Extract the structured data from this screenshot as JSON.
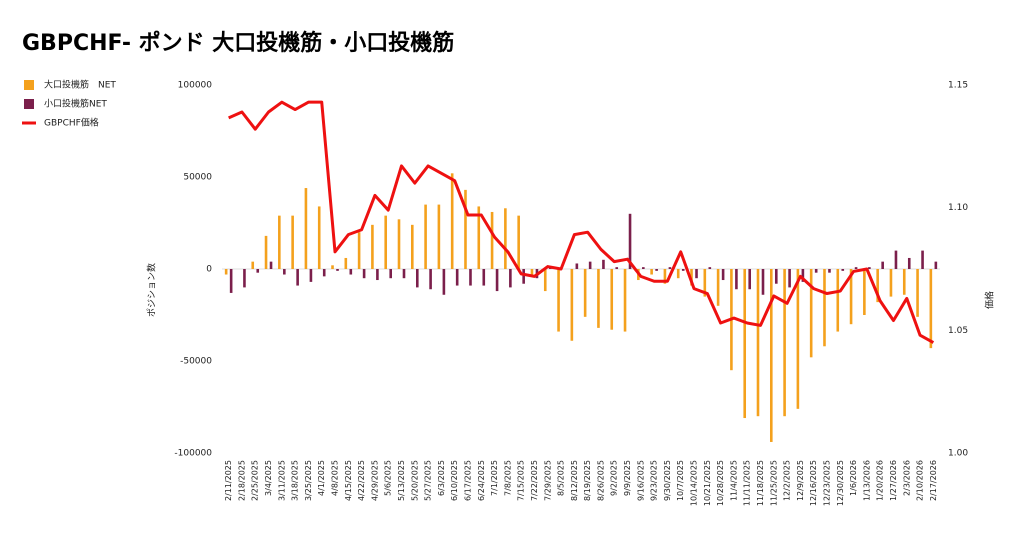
{
  "chart_data": {
    "type": "bar",
    "title": "GBPCHF- ポンド 大口投機筋・小口投機筋",
    "y_label": "ポジション数",
    "y2_label": "価格",
    "categories": [
      "2/11/2025",
      "2/18/2025",
      "2/25/2025",
      "3/4/2025",
      "3/11/2025",
      "3/18/2025",
      "3/25/2025",
      "4/1/2025",
      "4/8/2025",
      "4/15/2025",
      "4/22/2025",
      "4/29/2025",
      "5/6/2025",
      "5/13/2025",
      "5/20/2025",
      "5/27/2025",
      "6/3/2025",
      "6/10/2025",
      "6/17/2025",
      "6/24/2025",
      "7/1/2025",
      "7/8/2025",
      "7/15/2025",
      "7/22/2025",
      "7/29/2025",
      "8/5/2025",
      "8/12/2025",
      "8/19/2025",
      "8/26/2025",
      "9/2/2025",
      "9/9/2025",
      "9/16/2025",
      "9/23/2025",
      "9/30/2025",
      "10/7/2025",
      "10/14/2025",
      "10/21/2025",
      "10/28/2025",
      "11/4/2025",
      "11/11/2025",
      "11/18/2025",
      "11/25/2025",
      "12/2/2025",
      "12/9/2025",
      "12/16/2025",
      "12/23/2025",
      "12/30/2025",
      "1/6/2026",
      "1/13/2026",
      "1/20/2026",
      "1/27/2026",
      "2/3/2026",
      "2/10/2026",
      "2/17/2026"
    ],
    "series": [
      {
        "name": "大口投機筋　NET",
        "color": "#f4a11d",
        "type": "bar",
        "values": [
          -3000,
          0,
          4000,
          18000,
          29000,
          29000,
          44000,
          34000,
          2000,
          6000,
          20000,
          24000,
          29000,
          27000,
          24000,
          35000,
          35000,
          52000,
          43000,
          34000,
          31000,
          33000,
          29000,
          -3000,
          -12000,
          -34000,
          -39000,
          -26000,
          -32000,
          -33000,
          -34000,
          -6000,
          -3000,
          -8000,
          -5000,
          -9000,
          -15000,
          -20000,
          -55000,
          -81000,
          -80000,
          -94000,
          -80000,
          -76000,
          -48000,
          -42000,
          -34000,
          -30000,
          -25000,
          -18000,
          -15000,
          -14000,
          -26000,
          -43000
        ]
      },
      {
        "name": "小口投機筋NET",
        "color": "#7b1f4b",
        "type": "bar",
        "values": [
          -13000,
          -10000,
          -2000,
          4000,
          -3000,
          -9000,
          -7000,
          -4000,
          -1000,
          -3000,
          -5000,
          -6000,
          -5000,
          -5000,
          -10000,
          -11000,
          -14000,
          -9000,
          -9000,
          -9000,
          -12000,
          -10000,
          -8000,
          -5000,
          1000,
          0,
          3000,
          4000,
          5000,
          1000,
          30000,
          1000,
          -1000,
          1000,
          -1000,
          -5000,
          1000,
          -6000,
          -11000,
          -11000,
          -14000,
          -8000,
          -10000,
          -7000,
          -2000,
          -2000,
          -1000,
          1000,
          1000,
          4000,
          10000,
          6000,
          10000,
          4000
        ]
      },
      {
        "name": "GBPCHF価格",
        "color": "#ee1111",
        "type": "line",
        "axis": "y2",
        "values": [
          1.1366,
          1.139,
          1.132,
          1.139,
          1.143,
          1.14,
          1.143,
          1.143,
          1.082,
          1.089,
          1.091,
          1.105,
          1.099,
          1.117,
          1.11,
          1.117,
          1.114,
          1.111,
          1.097,
          1.097,
          1.088,
          1.082,
          1.073,
          1.072,
          1.076,
          1.075,
          1.089,
          1.09,
          1.083,
          1.078,
          1.079,
          1.072,
          1.07,
          1.07,
          1.082,
          1.067,
          1.065,
          1.053,
          1.055,
          1.053,
          1.052,
          1.064,
          1.061,
          1.072,
          1.067,
          1.065,
          1.066,
          1.074,
          1.075,
          1.062,
          1.054,
          1.063,
          1.048,
          1.045
        ]
      }
    ],
    "ylim": [
      -100000,
      100000
    ],
    "yticks": [
      -100000,
      -50000,
      0,
      50000,
      100000
    ],
    "y2lim": [
      {
        "value": 1.0,
        "label": "1.00"
      },
      1.15
    ],
    "y2ticks": [
      {
        "value": 1.0,
        "label": "1.00"
      },
      1.05,
      {
        "value": 1.1,
        "label": "1.10"
      },
      1.15
    ],
    "grid": false,
    "legend": "left"
  }
}
